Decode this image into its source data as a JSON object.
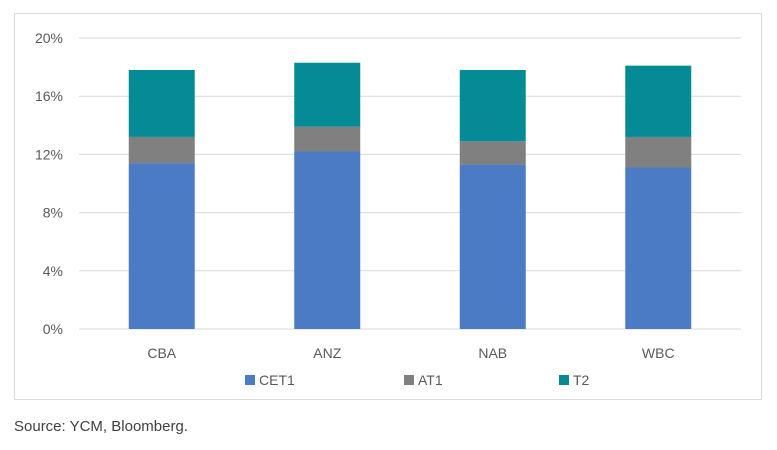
{
  "chart_data": {
    "type": "bar",
    "stacked": true,
    "categories": [
      "CBA",
      "ANZ",
      "NAB",
      "WBC"
    ],
    "series": [
      {
        "name": "CET1",
        "color": "#4a7bc4",
        "values": [
          11.4,
          12.2,
          11.3,
          11.1
        ]
      },
      {
        "name": "AT1",
        "color": "#808080",
        "values": [
          1.8,
          1.7,
          1.6,
          2.1
        ]
      },
      {
        "name": "T2",
        "color": "#058b96",
        "values": [
          4.6,
          4.4,
          4.9,
          4.9
        ]
      }
    ],
    "ylim": [
      0,
      20
    ],
    "yticks": [
      0,
      4,
      8,
      12,
      16,
      20
    ],
    "ytick_labels": [
      "0%",
      "4%",
      "8%",
      "12%",
      "16%",
      "20%"
    ],
    "grid": true,
    "legend_position": "bottom"
  },
  "source_note": "Source: YCM, Bloomberg."
}
